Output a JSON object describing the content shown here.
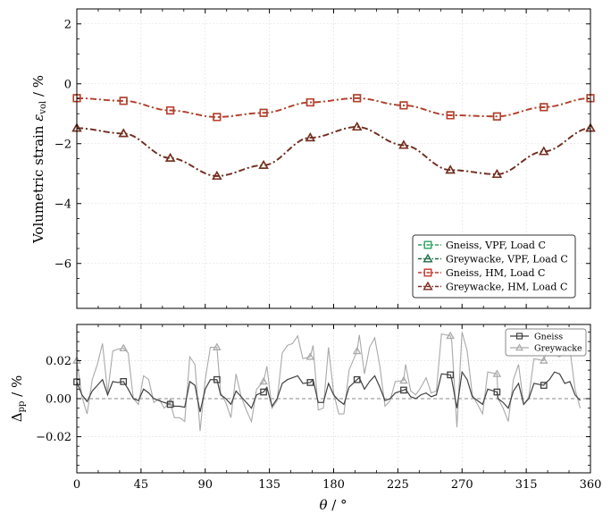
{
  "chart_data": [
    {
      "type": "line",
      "panel": "top",
      "xlabel": "",
      "ylabel": "Volumetric strain",
      "ylabel_symbol": "ε",
      "ylabel_subscript": "vol",
      "ylabel_unit": " / %",
      "xlim": [
        0,
        360
      ],
      "ylim": [
        -7.5,
        2.5
      ],
      "yticks": [
        2,
        0,
        -2,
        -4,
        -6
      ],
      "ytick_labels": [
        "2",
        "0",
        "−2",
        "−4",
        "−6"
      ],
      "grid": true,
      "legend_position": "lower-right",
      "series": [
        {
          "name": "Gneiss, VPF, Load C",
          "marker": "square",
          "color": "#2ca25f",
          "x": [
            0,
            32.7,
            65.5,
            98.2,
            130.9,
            163.6,
            196.4,
            229.1,
            261.8,
            294.5,
            327.3,
            360
          ],
          "y": [
            -0.48,
            -0.57,
            -0.89,
            -1.11,
            -0.97,
            -0.62,
            -0.48,
            -0.72,
            -1.05,
            -1.09,
            -0.78,
            -0.48
          ]
        },
        {
          "name": "Greywacke, VPF, Load C",
          "marker": "triangle",
          "color": "#1b6e45",
          "x": [
            0,
            32.7,
            65.5,
            98.2,
            130.9,
            163.6,
            196.4,
            229.1,
            261.8,
            294.5,
            327.3,
            360
          ],
          "y": [
            -1.48,
            -1.66,
            -2.48,
            -3.08,
            -2.72,
            -1.8,
            -1.44,
            -2.05,
            -2.88,
            -3.02,
            -2.26,
            -1.48
          ]
        },
        {
          "name": "Gneiss, HM, Load C",
          "marker": "square",
          "color": "#c0392b",
          "x": [
            0,
            32.7,
            65.5,
            98.2,
            130.9,
            163.6,
            196.4,
            229.1,
            261.8,
            294.5,
            327.3,
            360
          ],
          "y": [
            -0.48,
            -0.57,
            -0.89,
            -1.11,
            -0.97,
            -0.62,
            -0.48,
            -0.72,
            -1.05,
            -1.09,
            -0.78,
            -0.48
          ]
        },
        {
          "name": "Greywacke, HM, Load C",
          "marker": "triangle",
          "color": "#7b2a1e",
          "x": [
            0,
            32.7,
            65.5,
            98.2,
            130.9,
            163.6,
            196.4,
            229.1,
            261.8,
            294.5,
            327.3,
            360
          ],
          "y": [
            -1.48,
            -1.66,
            -2.48,
            -3.08,
            -2.72,
            -1.8,
            -1.44,
            -2.05,
            -2.88,
            -3.02,
            -2.26,
            -1.48
          ]
        }
      ]
    },
    {
      "type": "line",
      "panel": "bottom",
      "xlabel": "θ",
      "xlabel_unit": " / °",
      "ylabel": "Δ",
      "ylabel_subscript": "pp",
      "ylabel_unit": " / %",
      "xlim": [
        0,
        360
      ],
      "ylim": [
        -0.039,
        0.039
      ],
      "xticks": [
        0,
        45,
        90,
        135,
        180,
        225,
        270,
        315,
        360
      ],
      "xtick_labels": [
        "0",
        "45",
        "90",
        "135",
        "180",
        "225",
        "270",
        "315",
        "360"
      ],
      "yticks": [
        0.02,
        0.0,
        -0.02
      ],
      "ytick_labels": [
        "0.02",
        "0.00",
        "−0.02"
      ],
      "grid": true,
      "zero_line": true,
      "legend_position": "top-right",
      "series": [
        {
          "name": "Gneiss",
          "marker": "square",
          "color": "#404040",
          "x": [
            0,
            3.6,
            7.2,
            10.8,
            14.4,
            18.0,
            21.6,
            25.2,
            28.8,
            32.7,
            36.0,
            39.6,
            43.2,
            46.8,
            50.4,
            54.0,
            57.6,
            61.2,
            65.5,
            68.4,
            72.0,
            75.6,
            79.2,
            82.8,
            86.4,
            90.0,
            93.6,
            98.2,
            100.8,
            104.4,
            108.0,
            111.6,
            115.2,
            118.8,
            122.4,
            126.0,
            130.9,
            133.2,
            136.8,
            140.4,
            144.0,
            147.6,
            151.2,
            154.8,
            158.4,
            163.6,
            165.6,
            169.2,
            172.8,
            176.4,
            180.0,
            183.6,
            187.2,
            190.8,
            196.4,
            198.0,
            201.6,
            205.2,
            208.8,
            212.4,
            216.0,
            219.6,
            223.2,
            229.1,
            230.4,
            234.0,
            237.6,
            241.2,
            244.8,
            248.4,
            252.0,
            255.6,
            261.8,
            262.8,
            266.4,
            270.0,
            273.6,
            277.2,
            280.8,
            284.4,
            288.0,
            294.5,
            295.2,
            298.8,
            302.4,
            306.0,
            309.6,
            313.2,
            316.8,
            320.4,
            327.3,
            327.6,
            331.2,
            334.8,
            338.4,
            342.0,
            345.6,
            349.2,
            352.8
          ],
          "y": [
            0.0088,
            0.002,
            -0.0015,
            0.004,
            0.007,
            0.01,
            0.002,
            0.009,
            0.0085,
            0.009,
            0.005,
            0.0,
            -0.001,
            0.005,
            0.003,
            0.0,
            -0.001,
            -0.002,
            -0.003,
            -0.004,
            -0.004,
            -0.0045,
            0.009,
            0.007,
            -0.007,
            0.005,
            0.01,
            0.01,
            0.002,
            0.0,
            -0.003,
            0.004,
            0.001,
            -0.002,
            -0.005,
            0.002,
            0.0035,
            0.006,
            -0.004,
            0.0,
            0.008,
            0.01,
            0.011,
            0.012,
            0.008,
            0.0085,
            0.01,
            -0.002,
            -0.002,
            0.008,
            0.002,
            -0.001,
            -0.003,
            0.006,
            0.01,
            0.011,
            0.005,
            0.009,
            0.012,
            0.006,
            -0.001,
            0.0,
            0.003,
            0.0045,
            0.005,
            0.001,
            0.0,
            0.002,
            0.003,
            0.001,
            0.002,
            0.013,
            0.0125,
            0.01,
            -0.005,
            0.014,
            0.01,
            0.001,
            -0.001,
            -0.003,
            0.005,
            0.0035,
            0.0,
            -0.002,
            -0.005,
            0.004,
            0.008,
            -0.003,
            0.0,
            0.008,
            0.007,
            0.0075,
            0.01,
            0.014,
            0.013,
            0.008,
            0.009,
            0.002,
            -0.001
          ]
        },
        {
          "name": "Greywacke",
          "marker": "triangle",
          "color": "#a9a9a9",
          "x": [
            0,
            3.6,
            7.2,
            10.8,
            14.4,
            18.0,
            21.6,
            25.2,
            28.8,
            32.7,
            36.0,
            39.6,
            43.2,
            46.8,
            50.4,
            54.0,
            57.6,
            61.2,
            65.5,
            68.4,
            72.0,
            75.6,
            79.2,
            82.8,
            86.4,
            90.0,
            93.6,
            98.2,
            100.8,
            104.4,
            108.0,
            111.6,
            115.2,
            118.8,
            122.4,
            126.0,
            130.9,
            133.2,
            136.8,
            140.4,
            144.0,
            147.6,
            151.2,
            154.8,
            158.4,
            163.6,
            165.6,
            169.2,
            172.8,
            176.4,
            180.0,
            183.6,
            187.2,
            190.8,
            196.4,
            198.0,
            201.6,
            205.2,
            208.8,
            212.4,
            216.0,
            219.6,
            223.2,
            229.1,
            230.4,
            234.0,
            237.6,
            241.2,
            244.8,
            248.4,
            252.0,
            255.6,
            261.8,
            262.8,
            266.4,
            270.0,
            273.6,
            277.2,
            280.8,
            284.4,
            288.0,
            294.5,
            295.2,
            298.8,
            302.4,
            306.0,
            309.6,
            313.2,
            316.8,
            320.4,
            327.3,
            327.6,
            331.2,
            334.8,
            338.4,
            342.0,
            345.6,
            349.2,
            352.8
          ],
          "y": [
            0.02,
            0.001,
            -0.008,
            0.01,
            0.018,
            0.029,
            0.003,
            0.025,
            0.026,
            0.0265,
            0.024,
            0.0,
            -0.003,
            0.012,
            0.01,
            -0.002,
            0.0,
            -0.005,
            -0.002,
            -0.01,
            -0.01,
            -0.012,
            0.022,
            0.018,
            -0.017,
            0.01,
            0.027,
            0.027,
            0.003,
            -0.002,
            -0.01,
            0.013,
            0.001,
            -0.006,
            -0.012,
            0.005,
            0.009,
            0.017,
            -0.005,
            -0.001,
            0.024,
            0.028,
            0.029,
            0.033,
            0.021,
            0.022,
            0.028,
            -0.006,
            -0.005,
            0.027,
            0.003,
            -0.008,
            -0.008,
            0.015,
            0.025,
            0.0335,
            0.013,
            0.027,
            0.032,
            0.017,
            -0.004,
            -0.001,
            0.009,
            0.0095,
            0.018,
            0.004,
            0.002,
            0.006,
            0.011,
            0.003,
            0.004,
            0.034,
            0.033,
            0.03,
            -0.015,
            0.035,
            0.025,
            0.002,
            -0.003,
            -0.008,
            0.014,
            0.013,
            0.0,
            -0.005,
            -0.012,
            0.01,
            0.018,
            -0.003,
            0.001,
            0.021,
            0.02,
            0.021,
            0.028,
            0.023,
            0.022,
            0.024,
            0.026,
            0.005,
            -0.005
          ]
        }
      ]
    }
  ]
}
